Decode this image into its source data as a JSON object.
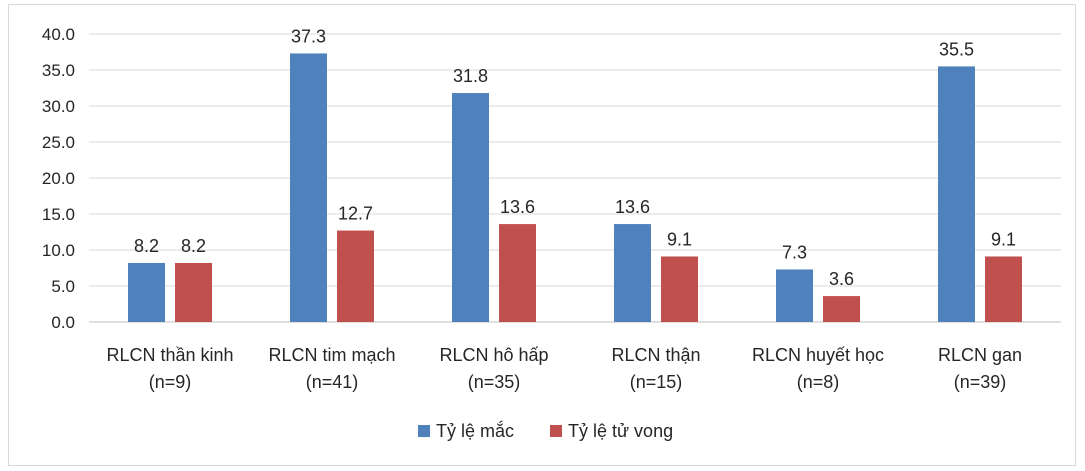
{
  "chart_data": {
    "type": "bar",
    "categories": [
      [
        "RLCN thần kinh",
        "(n=9)"
      ],
      [
        "RLCN tim mạch",
        "(n=41)"
      ],
      [
        "RLCN hô hấp",
        "(n=35)"
      ],
      [
        "RLCN thận",
        "(n=15)"
      ],
      [
        "RLCN huyết học",
        "(n=8)"
      ],
      [
        "RLCN gan",
        "(n=39)"
      ]
    ],
    "series": [
      {
        "name": "Tỷ lệ mắc",
        "color": "#4f81bd",
        "values": [
          8.2,
          37.3,
          31.8,
          13.6,
          7.3,
          35.5
        ]
      },
      {
        "name": "Tỷ lệ tử vong",
        "color": "#c0504d",
        "values": [
          8.2,
          12.7,
          13.6,
          9.1,
          3.6,
          9.1
        ]
      }
    ],
    "title": "",
    "xlabel": "",
    "ylabel": "",
    "ylim": [
      0,
      40
    ],
    "yticks": [
      "0.0",
      "5.0",
      "10.0",
      "15.0",
      "20.0",
      "25.0",
      "30.0",
      "35.0",
      "40.0"
    ],
    "grid": true,
    "legend": "bottom"
  }
}
